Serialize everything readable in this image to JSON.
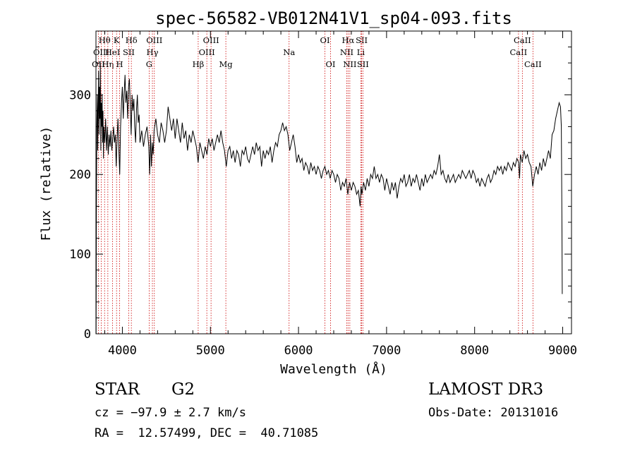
{
  "chart_data": {
    "type": "line",
    "title": "spec-56582-VB012N41V1_sp04-093.fits",
    "xlabel": "Wavelength (Å)",
    "ylabel": "Flux (relative)",
    "xlim": [
      3700,
      9100
    ],
    "ylim": [
      0,
      380
    ],
    "x_ticks": [
      4000,
      5000,
      6000,
      7000,
      8000,
      9000
    ],
    "y_ticks": [
      0,
      100,
      200,
      300
    ],
    "grid": false,
    "colors": {
      "line": "#000000",
      "markers": "#cc0000"
    },
    "spectrum": [
      [
        3702,
        0
      ],
      [
        3705,
        150
      ],
      [
        3710,
        260
      ],
      [
        3715,
        300
      ],
      [
        3720,
        230
      ],
      [
        3725,
        280
      ],
      [
        3730,
        330
      ],
      [
        3735,
        250
      ],
      [
        3740,
        310
      ],
      [
        3745,
        270
      ],
      [
        3750,
        340
      ],
      [
        3755,
        230
      ],
      [
        3760,
        290
      ],
      [
        3765,
        260
      ],
      [
        3770,
        300
      ],
      [
        3775,
        240
      ],
      [
        3780,
        280
      ],
      [
        3785,
        220
      ],
      [
        3790,
        260
      ],
      [
        3800,
        240
      ],
      [
        3810,
        270
      ],
      [
        3820,
        230
      ],
      [
        3830,
        260
      ],
      [
        3840,
        225
      ],
      [
        3850,
        250
      ],
      [
        3860,
        235
      ],
      [
        3870,
        255
      ],
      [
        3880,
        230
      ],
      [
        3890,
        245
      ],
      [
        3900,
        260
      ],
      [
        3910,
        240
      ],
      [
        3920,
        250
      ],
      [
        3930,
        210
      ],
      [
        3940,
        245
      ],
      [
        3950,
        270
      ],
      [
        3960,
        230
      ],
      [
        3970,
        200
      ],
      [
        3980,
        260
      ],
      [
        3990,
        290
      ],
      [
        4000,
        310
      ],
      [
        4010,
        270
      ],
      [
        4020,
        300
      ],
      [
        4030,
        325
      ],
      [
        4040,
        290
      ],
      [
        4050,
        305
      ],
      [
        4060,
        270
      ],
      [
        4070,
        310
      ],
      [
        4080,
        320
      ],
      [
        4090,
        285
      ],
      [
        4100,
        250
      ],
      [
        4110,
        300
      ],
      [
        4120,
        280
      ],
      [
        4130,
        295
      ],
      [
        4140,
        260
      ],
      [
        4150,
        240
      ],
      [
        4160,
        280
      ],
      [
        4170,
        300
      ],
      [
        4180,
        265
      ],
      [
        4190,
        275
      ],
      [
        4200,
        240
      ],
      [
        4220,
        255
      ],
      [
        4240,
        235
      ],
      [
        4260,
        250
      ],
      [
        4280,
        260
      ],
      [
        4300,
        235
      ],
      [
        4310,
        200
      ],
      [
        4320,
        250
      ],
      [
        4330,
        210
      ],
      [
        4340,
        240
      ],
      [
        4350,
        225
      ],
      [
        4360,
        255
      ],
      [
        4380,
        270
      ],
      [
        4400,
        250
      ],
      [
        4420,
        240
      ],
      [
        4440,
        265
      ],
      [
        4460,
        255
      ],
      [
        4480,
        240
      ],
      [
        4500,
        255
      ],
      [
        4520,
        285
      ],
      [
        4540,
        270
      ],
      [
        4560,
        255
      ],
      [
        4580,
        270
      ],
      [
        4600,
        245
      ],
      [
        4620,
        270
      ],
      [
        4640,
        255
      ],
      [
        4660,
        240
      ],
      [
        4680,
        265
      ],
      [
        4700,
        245
      ],
      [
        4720,
        255
      ],
      [
        4740,
        230
      ],
      [
        4760,
        250
      ],
      [
        4780,
        240
      ],
      [
        4800,
        255
      ],
      [
        4820,
        245
      ],
      [
        4840,
        235
      ],
      [
        4860,
        215
      ],
      [
        4880,
        240
      ],
      [
        4900,
        230
      ],
      [
        4920,
        220
      ],
      [
        4940,
        235
      ],
      [
        4960,
        225
      ],
      [
        4980,
        245
      ],
      [
        5000,
        235
      ],
      [
        5020,
        245
      ],
      [
        5040,
        230
      ],
      [
        5060,
        240
      ],
      [
        5080,
        250
      ],
      [
        5100,
        240
      ],
      [
        5120,
        255
      ],
      [
        5140,
        240
      ],
      [
        5160,
        230
      ],
      [
        5180,
        210
      ],
      [
        5200,
        230
      ],
      [
        5220,
        235
      ],
      [
        5240,
        220
      ],
      [
        5260,
        230
      ],
      [
        5280,
        215
      ],
      [
        5300,
        230
      ],
      [
        5320,
        225
      ],
      [
        5340,
        210
      ],
      [
        5360,
        230
      ],
      [
        5380,
        225
      ],
      [
        5400,
        235
      ],
      [
        5420,
        220
      ],
      [
        5440,
        215
      ],
      [
        5460,
        225
      ],
      [
        5480,
        235
      ],
      [
        5500,
        225
      ],
      [
        5520,
        240
      ],
      [
        5540,
        230
      ],
      [
        5560,
        235
      ],
      [
        5580,
        210
      ],
      [
        5600,
        230
      ],
      [
        5620,
        220
      ],
      [
        5640,
        230
      ],
      [
        5660,
        225
      ],
      [
        5680,
        235
      ],
      [
        5700,
        215
      ],
      [
        5720,
        230
      ],
      [
        5740,
        240
      ],
      [
        5760,
        235
      ],
      [
        5780,
        250
      ],
      [
        5800,
        255
      ],
      [
        5820,
        265
      ],
      [
        5840,
        255
      ],
      [
        5860,
        260
      ],
      [
        5880,
        250
      ],
      [
        5900,
        230
      ],
      [
        5920,
        240
      ],
      [
        5940,
        250
      ],
      [
        5960,
        235
      ],
      [
        5980,
        215
      ],
      [
        6000,
        225
      ],
      [
        6020,
        215
      ],
      [
        6040,
        220
      ],
      [
        6060,
        205
      ],
      [
        6080,
        215
      ],
      [
        6100,
        210
      ],
      [
        6120,
        200
      ],
      [
        6140,
        215
      ],
      [
        6160,
        205
      ],
      [
        6180,
        210
      ],
      [
        6200,
        200
      ],
      [
        6220,
        210
      ],
      [
        6240,
        205
      ],
      [
        6260,
        195
      ],
      [
        6280,
        205
      ],
      [
        6300,
        210
      ],
      [
        6320,
        200
      ],
      [
        6340,
        205
      ],
      [
        6360,
        195
      ],
      [
        6380,
        205
      ],
      [
        6400,
        200
      ],
      [
        6420,
        190
      ],
      [
        6440,
        200
      ],
      [
        6460,
        195
      ],
      [
        6480,
        180
      ],
      [
        6500,
        190
      ],
      [
        6520,
        185
      ],
      [
        6540,
        195
      ],
      [
        6560,
        175
      ],
      [
        6580,
        190
      ],
      [
        6600,
        180
      ],
      [
        6620,
        190
      ],
      [
        6640,
        185
      ],
      [
        6660,
        175
      ],
      [
        6680,
        180
      ],
      [
        6700,
        160
      ],
      [
        6710,
        185
      ],
      [
        6720,
        175
      ],
      [
        6740,
        190
      ],
      [
        6760,
        180
      ],
      [
        6780,
        195
      ],
      [
        6800,
        185
      ],
      [
        6820,
        200
      ],
      [
        6840,
        195
      ],
      [
        6860,
        210
      ],
      [
        6880,
        195
      ],
      [
        6900,
        200
      ],
      [
        6920,
        190
      ],
      [
        6940,
        200
      ],
      [
        6960,
        195
      ],
      [
        6980,
        180
      ],
      [
        7000,
        195
      ],
      [
        7020,
        185
      ],
      [
        7040,
        175
      ],
      [
        7060,
        190
      ],
      [
        7080,
        180
      ],
      [
        7100,
        190
      ],
      [
        7120,
        170
      ],
      [
        7140,
        185
      ],
      [
        7160,
        195
      ],
      [
        7180,
        190
      ],
      [
        7200,
        200
      ],
      [
        7220,
        185
      ],
      [
        7240,
        190
      ],
      [
        7260,
        200
      ],
      [
        7280,
        185
      ],
      [
        7300,
        195
      ],
      [
        7320,
        190
      ],
      [
        7340,
        200
      ],
      [
        7360,
        190
      ],
      [
        7380,
        180
      ],
      [
        7400,
        195
      ],
      [
        7420,
        185
      ],
      [
        7440,
        200
      ],
      [
        7460,
        190
      ],
      [
        7480,
        195
      ],
      [
        7500,
        200
      ],
      [
        7520,
        195
      ],
      [
        7540,
        205
      ],
      [
        7560,
        200
      ],
      [
        7580,
        210
      ],
      [
        7600,
        225
      ],
      [
        7620,
        200
      ],
      [
        7640,
        205
      ],
      [
        7660,
        195
      ],
      [
        7680,
        190
      ],
      [
        7700,
        200
      ],
      [
        7720,
        190
      ],
      [
        7740,
        195
      ],
      [
        7760,
        200
      ],
      [
        7780,
        190
      ],
      [
        7800,
        195
      ],
      [
        7820,
        200
      ],
      [
        7840,
        195
      ],
      [
        7860,
        205
      ],
      [
        7880,
        200
      ],
      [
        7900,
        195
      ],
      [
        7920,
        200
      ],
      [
        7940,
        205
      ],
      [
        7960,
        195
      ],
      [
        7980,
        205
      ],
      [
        8000,
        200
      ],
      [
        8020,
        190
      ],
      [
        8040,
        195
      ],
      [
        8060,
        185
      ],
      [
        8080,
        195
      ],
      [
        8100,
        190
      ],
      [
        8120,
        185
      ],
      [
        8140,
        195
      ],
      [
        8160,
        200
      ],
      [
        8180,
        190
      ],
      [
        8200,
        195
      ],
      [
        8220,
        205
      ],
      [
        8240,
        200
      ],
      [
        8260,
        210
      ],
      [
        8280,
        205
      ],
      [
        8300,
        210
      ],
      [
        8320,
        200
      ],
      [
        8340,
        210
      ],
      [
        8360,
        205
      ],
      [
        8380,
        215
      ],
      [
        8400,
        210
      ],
      [
        8420,
        205
      ],
      [
        8440,
        215
      ],
      [
        8460,
        210
      ],
      [
        8480,
        220
      ],
      [
        8500,
        215
      ],
      [
        8510,
        195
      ],
      [
        8520,
        225
      ],
      [
        8540,
        215
      ],
      [
        8560,
        230
      ],
      [
        8580,
        220
      ],
      [
        8600,
        225
      ],
      [
        8620,
        215
      ],
      [
        8640,
        210
      ],
      [
        8660,
        185
      ],
      [
        8680,
        200
      ],
      [
        8700,
        210
      ],
      [
        8720,
        200
      ],
      [
        8740,
        215
      ],
      [
        8760,
        205
      ],
      [
        8780,
        220
      ],
      [
        8800,
        210
      ],
      [
        8820,
        220
      ],
      [
        8840,
        230
      ],
      [
        8860,
        220
      ],
      [
        8880,
        250
      ],
      [
        8900,
        255
      ],
      [
        8920,
        270
      ],
      [
        8940,
        280
      ],
      [
        8960,
        290
      ],
      [
        8975,
        285
      ],
      [
        8985,
        260
      ],
      [
        8992,
        130
      ],
      [
        8995,
        50
      ]
    ],
    "lines": [
      {
        "label": "OII",
        "wl": 3727,
        "row": 3
      },
      {
        "label": "Hθ",
        "wl": 3798,
        "row": 1
      },
      {
        "label": "OIII",
        "wl": 3760,
        "row": 2
      },
      {
        "label": "Hη",
        "wl": 3835,
        "row": 3
      },
      {
        "label": "HeI",
        "wl": 3889,
        "row": 2
      },
      {
        "label": "K",
        "wl": 3934,
        "row": 1
      },
      {
        "label": "H",
        "wl": 3969,
        "row": 3
      },
      {
        "label": "SII",
        "wl": 4072,
        "row": 2
      },
      {
        "label": "Hδ",
        "wl": 4102,
        "row": 1
      },
      {
        "label": "G",
        "wl": 4304,
        "row": 3
      },
      {
        "label": "Hγ",
        "wl": 4341,
        "row": 2
      },
      {
        "label": "OIII",
        "wl": 4363,
        "row": 1
      },
      {
        "label": "Hβ",
        "wl": 4861,
        "row": 3
      },
      {
        "label": "OIII",
        "wl": 4959,
        "row": 2
      },
      {
        "label": "OIII",
        "wl": 5007,
        "row": 1
      },
      {
        "label": "Mg",
        "wl": 5175,
        "row": 3
      },
      {
        "label": "Na",
        "wl": 5893,
        "row": 2
      },
      {
        "label": "OI",
        "wl": 6300,
        "row": 1
      },
      {
        "label": "OI",
        "wl": 6364,
        "row": 3
      },
      {
        "label": "NII",
        "wl": 6548,
        "row": 2
      },
      {
        "label": "Hα",
        "wl": 6563,
        "row": 1
      },
      {
        "label": "NII",
        "wl": 6583,
        "row": 3
      },
      {
        "label": "Li",
        "wl": 6708,
        "row": 2
      },
      {
        "label": "SII",
        "wl": 6717,
        "row": 1
      },
      {
        "label": "SII",
        "wl": 6731,
        "row": 3
      },
      {
        "label": "CaII",
        "wl": 8498,
        "row": 2
      },
      {
        "label": "CaII",
        "wl": 8542,
        "row": 1
      },
      {
        "label": "CaII",
        "wl": 8662,
        "row": 3
      }
    ]
  },
  "info": {
    "class_label": "STAR",
    "subclass": "G2",
    "cz": "cz = −97.9 ± 2.7 km/s",
    "coords": "RA =  12.57499, DEC =  40.71085",
    "survey": "LAMOST DR3",
    "obs_date": "Obs-Date: 20131016"
  }
}
